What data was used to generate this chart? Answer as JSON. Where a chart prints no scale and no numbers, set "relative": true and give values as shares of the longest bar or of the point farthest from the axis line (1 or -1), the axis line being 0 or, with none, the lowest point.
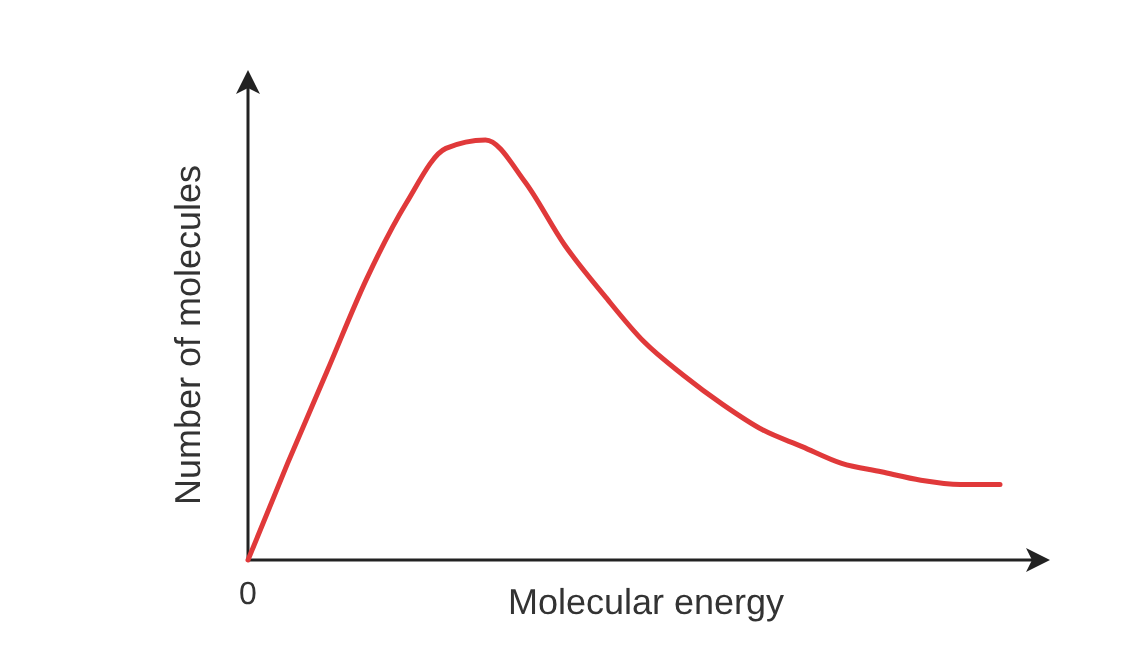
{
  "chart_data": {
    "type": "line",
    "relative": true,
    "xlabel": "Molecular energy",
    "ylabel": "Number of molecules",
    "annotations": [
      "0"
    ],
    "categories": [
      null,
      null,
      null,
      null,
      null,
      null,
      null,
      null,
      null,
      null,
      null,
      null,
      null,
      null,
      null,
      null,
      null,
      null,
      null,
      null
    ],
    "series": [
      {
        "color": "#e0393a",
        "values": [
          0,
          0.23,
          0.45,
          0.67,
          0.85,
          0.98,
          1,
          0.9,
          0.75,
          0.63,
          0.52,
          0.44,
          0.37,
          0.31,
          0.27,
          0.23,
          0.21,
          0.19,
          0.18,
          0.18
        ]
      }
    ]
  }
}
